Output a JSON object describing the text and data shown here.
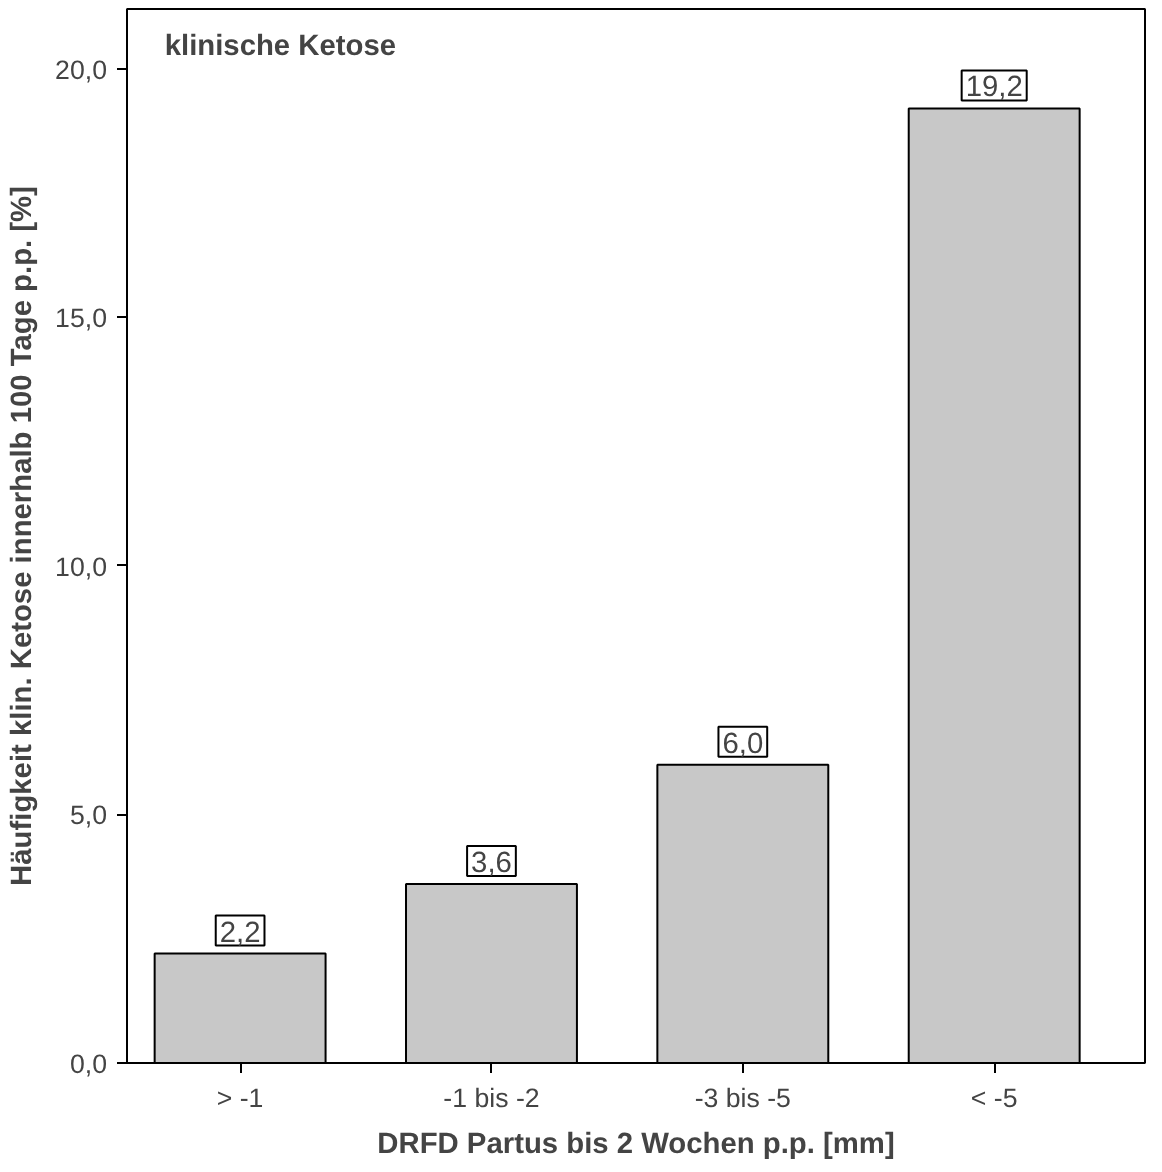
{
  "chart_data": {
    "type": "bar",
    "title": "klinische Ketose",
    "xlabel": "DRFD Partus bis 2 Wochen p.p. [mm]",
    "ylabel": "Häufigkeit klin. Ketose innerhalb 100 Tage p.p. [%]",
    "categories": [
      "> -1",
      "-1 bis -2",
      "-3 bis -5",
      "< -5"
    ],
    "values": [
      2.2,
      3.6,
      6.0,
      19.2
    ],
    "value_labels": [
      "2,2",
      "3,6",
      "6,0",
      "19,2"
    ],
    "color": "#c8c8c8",
    "ylim": [
      0,
      21.2
    ],
    "yticks": [
      {
        "value": 0,
        "label": "0,0"
      },
      {
        "value": 5,
        "label": "5,0"
      },
      {
        "value": 10,
        "label": "10,0"
      },
      {
        "value": 15,
        "label": "15,0"
      },
      {
        "value": 20,
        "label": "20,0"
      }
    ],
    "grid": false
  }
}
